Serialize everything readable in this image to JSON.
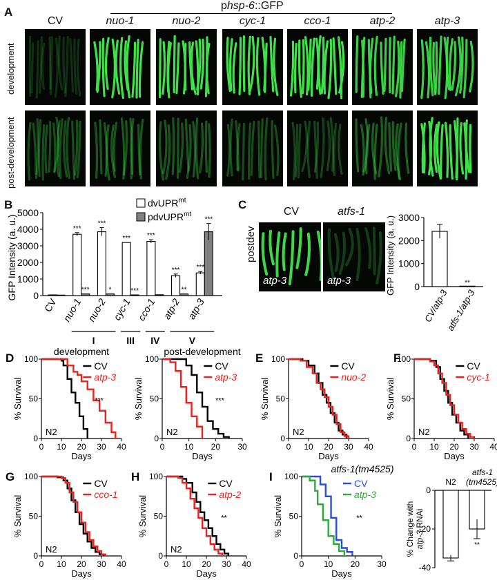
{
  "panelA": {
    "letter": "A",
    "reporter_prefix": "p",
    "reporter_gene": "hsp-6",
    "reporter_suffix": "::GFP",
    "columns": [
      "CV",
      "nuo-1",
      "nuo-2",
      "cyc-1",
      "cco-1",
      "atp-2",
      "atp-3"
    ],
    "rows": [
      "development",
      "post-development"
    ],
    "brightness": {
      "development": [
        0.05,
        1,
        1,
        1,
        1,
        0.9,
        0.9
      ],
      "post-development": [
        0.2,
        0.25,
        0.25,
        0.2,
        0.15,
        0.3,
        1
      ]
    },
    "glow_color": "#3fe04a"
  },
  "panelB": {
    "letter": "B",
    "chart_data": {
      "type": "bar",
      "ylabel": "GFP Intensity (a. u.)",
      "ylim": [
        0,
        5000
      ],
      "yticks": [
        "0",
        "1000",
        "2000",
        "3000",
        "4000",
        "5000"
      ],
      "categories": [
        "CV",
        "nuo-1",
        "nuo-2",
        "cyc-1",
        "cco-1",
        "atp-2",
        "atp-3"
      ],
      "complex_labels": [
        "I",
        "III",
        "IV",
        "V"
      ],
      "legend": [
        "dvUPR",
        "pdvUPR"
      ],
      "legend_sup": "mt",
      "series": [
        {
          "name": "dvUPRmt",
          "values": [
            40,
            3700,
            3850,
            3200,
            3270,
            1200,
            1370
          ],
          "err": [
            0,
            100,
            250,
            0,
            100,
            100,
            80
          ],
          "sig": [
            "",
            "***",
            "***",
            "***",
            "***",
            "***",
            "***"
          ]
        },
        {
          "name": "pdvUPRmt",
          "values": [
            30,
            100,
            100,
            40,
            50,
            100,
            3850
          ],
          "err": [
            0,
            0,
            0,
            0,
            0,
            0,
            500
          ],
          "sig": [
            "",
            "***",
            "*",
            "***",
            "",
            "**",
            "***"
          ]
        }
      ]
    }
  },
  "panelC": {
    "letter": "C",
    "row_label": "postdev",
    "columns": [
      "CV",
      "atfs-1"
    ],
    "image_labels": [
      "atp-3",
      "atp-3"
    ],
    "chart_data": {
      "type": "bar",
      "ylabel": "GFP Intensity (a. u.)",
      "ylim": [
        0,
        3000
      ],
      "yticks": [
        "0",
        "1000",
        "2000",
        "3000"
      ],
      "categories": [
        "CV/atp-3",
        "atfs-1/atp-3"
      ],
      "values": [
        2400,
        20
      ],
      "err": [
        300,
        0
      ],
      "sig": [
        "",
        "**"
      ]
    }
  },
  "survival": [
    {
      "letter": "D",
      "title": "development",
      "strain": "N2",
      "sig": "***",
      "xmax": 40,
      "xticks": [
        "0",
        "10",
        "20",
        "30",
        "40"
      ],
      "series": [
        {
          "name": "CV",
          "color": "#000000",
          "steps": [
            [
              0,
              100
            ],
            [
              10,
              98
            ],
            [
              11,
              92
            ],
            [
              13,
              75
            ],
            [
              15,
              58
            ],
            [
              17,
              45
            ],
            [
              19,
              28
            ],
            [
              21,
              12
            ],
            [
              23,
              0
            ]
          ]
        },
        {
          "name": "atp-3",
          "color": "#e8231f",
          "steps": [
            [
              0,
              100
            ],
            [
              11,
              100
            ],
            [
              13,
              92
            ],
            [
              16,
              84
            ],
            [
              18,
              80
            ],
            [
              20,
              72
            ],
            [
              23,
              62
            ],
            [
              26,
              48
            ],
            [
              29,
              35
            ],
            [
              32,
              20
            ],
            [
              35,
              8
            ],
            [
              37,
              0
            ]
          ]
        }
      ]
    },
    {
      "letter": "",
      "title": "post-development",
      "strain": "N2",
      "sig": "***",
      "xmax": 30,
      "xticks": [
        "0",
        "10",
        "20",
        "30"
      ],
      "series": [
        {
          "name": "CV",
          "color": "#000000",
          "steps": [
            [
              0,
              100
            ],
            [
              7,
              100
            ],
            [
              9,
              92
            ],
            [
              11,
              80
            ],
            [
              13,
              58
            ],
            [
              15,
              40
            ],
            [
              17,
              22
            ],
            [
              19,
              12
            ],
            [
              21,
              6
            ],
            [
              23,
              2
            ],
            [
              25,
              0
            ]
          ]
        },
        {
          "name": "atp-3",
          "color": "#e8231f",
          "steps": [
            [
              0,
              100
            ],
            [
              3,
              96
            ],
            [
              5,
              85
            ],
            [
              7,
              65
            ],
            [
              9,
              45
            ],
            [
              11,
              28
            ],
            [
              13,
              15
            ],
            [
              15,
              0
            ]
          ]
        }
      ]
    },
    {
      "letter": "E",
      "title": "",
      "strain": "N2",
      "sig": "",
      "xmax": 40,
      "xticks": [
        "0",
        "10",
        "20",
        "30",
        "40"
      ],
      "series": [
        {
          "name": "CV",
          "color": "#000000",
          "steps": [
            [
              0,
              100
            ],
            [
              7,
              98
            ],
            [
              10,
              92
            ],
            [
              13,
              82
            ],
            [
              15,
              70
            ],
            [
              17,
              55
            ],
            [
              19,
              45
            ],
            [
              21,
              32
            ],
            [
              23,
              20
            ],
            [
              25,
              10
            ],
            [
              27,
              5
            ],
            [
              29,
              0
            ]
          ]
        },
        {
          "name": "nuo-2",
          "color": "#e8231f",
          "steps": [
            [
              0,
              100
            ],
            [
              6,
              98
            ],
            [
              9,
              90
            ],
            [
              12,
              82
            ],
            [
              14,
              70
            ],
            [
              16,
              62
            ],
            [
              18,
              52
            ],
            [
              20,
              40
            ],
            [
              22,
              30
            ],
            [
              24,
              18
            ],
            [
              26,
              8
            ],
            [
              28,
              3
            ],
            [
              30,
              0
            ]
          ]
        }
      ]
    },
    {
      "letter": "F",
      "title": "",
      "strain": "N2",
      "sig": "",
      "xmax": 40,
      "xticks": [
        "0",
        "10",
        "20",
        "30",
        "40"
      ],
      "series": [
        {
          "name": "CV",
          "color": "#000000",
          "steps": [
            [
              0,
              100
            ],
            [
              8,
              98
            ],
            [
              11,
              90
            ],
            [
              13,
              75
            ],
            [
              15,
              60
            ],
            [
              17,
              45
            ],
            [
              19,
              30
            ],
            [
              21,
              20
            ],
            [
              23,
              10
            ],
            [
              25,
              5
            ],
            [
              27,
              0
            ]
          ]
        },
        {
          "name": "cyc-1",
          "color": "#e8231f",
          "steps": [
            [
              0,
              100
            ],
            [
              8,
              97
            ],
            [
              10,
              92
            ],
            [
              12,
              82
            ],
            [
              14,
              70
            ],
            [
              16,
              55
            ],
            [
              18,
              42
            ],
            [
              20,
              30
            ],
            [
              22,
              20
            ],
            [
              24,
              12
            ],
            [
              26,
              6
            ],
            [
              28,
              2
            ],
            [
              30,
              0
            ]
          ]
        }
      ]
    },
    {
      "letter": "G",
      "title": "",
      "strain": "N2",
      "sig": "",
      "xmax": 40,
      "xticks": [
        "0",
        "10",
        "20",
        "30",
        "40"
      ],
      "series": [
        {
          "name": "CV",
          "color": "#000000",
          "steps": [
            [
              0,
              100
            ],
            [
              8,
              99
            ],
            [
              11,
              95
            ],
            [
              13,
              85
            ],
            [
              15,
              70
            ],
            [
              17,
              55
            ],
            [
              19,
              40
            ],
            [
              21,
              28
            ],
            [
              23,
              18
            ],
            [
              25,
              10
            ],
            [
              27,
              5
            ],
            [
              29,
              2
            ],
            [
              31,
              0
            ]
          ]
        },
        {
          "name": "cco-1",
          "color": "#e8231f",
          "steps": [
            [
              0,
              100
            ],
            [
              10,
              98
            ],
            [
              12,
              92
            ],
            [
              14,
              80
            ],
            [
              16,
              68
            ],
            [
              18,
              55
            ],
            [
              20,
              42
            ],
            [
              22,
              30
            ],
            [
              24,
              20
            ],
            [
              26,
              12
            ],
            [
              28,
              6
            ],
            [
              30,
              2
            ],
            [
              32,
              0
            ]
          ]
        }
      ]
    },
    {
      "letter": "H",
      "title": "",
      "strain": "N2",
      "sig": "**",
      "xmax": 40,
      "xticks": [
        "0",
        "10",
        "20",
        "30",
        "40"
      ],
      "series": [
        {
          "name": "CV",
          "color": "#000000",
          "steps": [
            [
              0,
              100
            ],
            [
              8,
              97
            ],
            [
              10,
              92
            ],
            [
              13,
              80
            ],
            [
              15,
              68
            ],
            [
              17,
              55
            ],
            [
              19,
              45
            ],
            [
              21,
              35
            ],
            [
              23,
              25
            ],
            [
              25,
              15
            ],
            [
              27,
              8
            ],
            [
              29,
              3
            ],
            [
              31,
              0
            ]
          ]
        },
        {
          "name": "atp-2",
          "color": "#e8231f",
          "steps": [
            [
              0,
              100
            ],
            [
              6,
              98
            ],
            [
              8,
              92
            ],
            [
              10,
              85
            ],
            [
              12,
              72
            ],
            [
              14,
              60
            ],
            [
              16,
              48
            ],
            [
              18,
              35
            ],
            [
              20,
              25
            ],
            [
              22,
              15
            ],
            [
              24,
              8
            ],
            [
              26,
              3
            ],
            [
              28,
              0
            ]
          ]
        }
      ]
    },
    {
      "letter": "I",
      "title": "atfs-1(tm4525)",
      "strain": "",
      "sig": "**",
      "xmax": 30,
      "xticks": [
        "0",
        "10",
        "20",
        "30"
      ],
      "series": [
        {
          "name": "CV",
          "color": "#2b4bd6",
          "steps": [
            [
              0,
              100
            ],
            [
              5,
              100
            ],
            [
              7,
              90
            ],
            [
              9,
              75
            ],
            [
              11,
              48
            ],
            [
              13,
              20
            ],
            [
              15,
              10
            ],
            [
              17,
              5
            ],
            [
              19,
              0
            ]
          ]
        },
        {
          "name": "atp-3",
          "color": "#2eaa3a",
          "steps": [
            [
              0,
              100
            ],
            [
              3,
              95
            ],
            [
              5,
              82
            ],
            [
              6,
              65
            ],
            [
              8,
              45
            ],
            [
              10,
              25
            ],
            [
              12,
              15
            ],
            [
              14,
              6
            ],
            [
              16,
              0
            ]
          ]
        }
      ]
    }
  ],
  "axis_text": {
    "ylabel": "% Survival",
    "xlabel": "Days",
    "yticks": [
      "0",
      "50",
      "100"
    ]
  },
  "panelIbar": {
    "chart_data": {
      "type": "bar",
      "ylabel_pre": "% Change with",
      "ylabel_gene": "atp-3",
      "ylabel_post": "RNAi",
      "ylim": [
        -40,
        0
      ],
      "yticks": [
        "0",
        "-20",
        "-40"
      ],
      "categories": [
        "N2",
        "atfs-1\n(tm4525)"
      ],
      "category_lines": [
        [
          "N2"
        ],
        [
          "atfs-1",
          "(tm4525)"
        ]
      ],
      "values": [
        -35,
        -20
      ],
      "err": [
        1.5,
        5
      ],
      "sig": [
        "",
        "**"
      ]
    }
  }
}
